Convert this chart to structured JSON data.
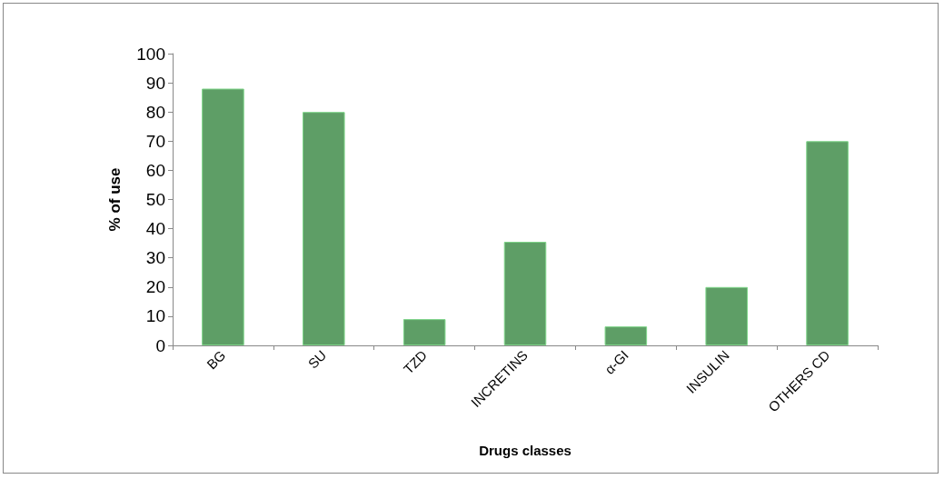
{
  "chart_data": {
    "type": "bar",
    "xlabel": "Drugs classes",
    "ylabel": "% of use",
    "categories": [
      "BG",
      "SU",
      "TZD",
      "INCRETINS",
      "α-GI",
      "INSULIN",
      "OTHERS CD"
    ],
    "values": [
      88,
      80,
      9,
      35.5,
      6.5,
      20,
      70
    ],
    "color": "#5e9e66",
    "ylim": [
      0,
      100
    ],
    "yticks": [
      0,
      10,
      20,
      30,
      40,
      50,
      60,
      70,
      80,
      90,
      100
    ],
    "grid": false
  }
}
